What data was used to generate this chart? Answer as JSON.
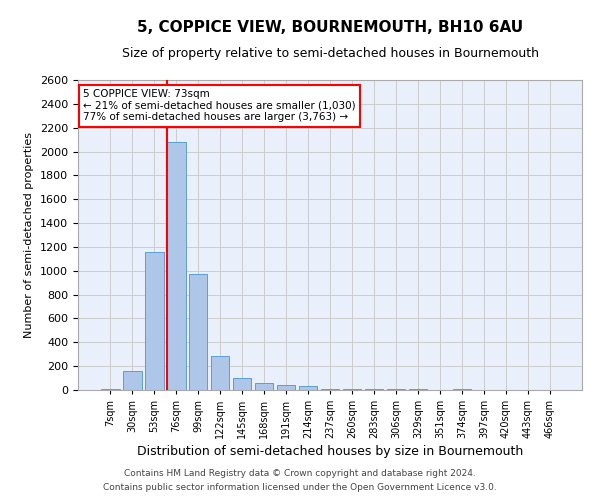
{
  "title": "5, COPPICE VIEW, BOURNEMOUTH, BH10 6AU",
  "subtitle": "Size of property relative to semi-detached houses in Bournemouth",
  "xlabel": "Distribution of semi-detached houses by size in Bournemouth",
  "ylabel": "Number of semi-detached properties",
  "footnote1": "Contains HM Land Registry data © Crown copyright and database right 2024.",
  "footnote2": "Contains public sector information licensed under the Open Government Licence v3.0.",
  "categories": [
    "7sqm",
    "30sqm",
    "53sqm",
    "76sqm",
    "99sqm",
    "122sqm",
    "145sqm",
    "168sqm",
    "191sqm",
    "214sqm",
    "237sqm",
    "260sqm",
    "283sqm",
    "306sqm",
    "329sqm",
    "351sqm",
    "374sqm",
    "397sqm",
    "420sqm",
    "443sqm",
    "466sqm"
  ],
  "values": [
    10,
    160,
    1160,
    2080,
    970,
    285,
    100,
    55,
    45,
    30,
    10,
    5,
    5,
    5,
    5,
    0,
    5,
    0,
    0,
    0,
    0
  ],
  "bar_color": "#aec6e8",
  "bar_edgecolor": "#5a9fd4",
  "grid_color": "#cccccc",
  "background_color": "#eaf0fb",
  "annotation_line1": "5 COPPICE VIEW: 73sqm",
  "annotation_line2": "← 21% of semi-detached houses are smaller (1,030)",
  "annotation_line3": "77% of semi-detached houses are larger (3,763) →",
  "annotation_box_edgecolor": "red",
  "property_line_color": "red",
  "property_line_index": 3,
  "bar_width": 0.85,
  "ylim": [
    0,
    2600
  ],
  "yticks": [
    0,
    200,
    400,
    600,
    800,
    1000,
    1200,
    1400,
    1600,
    1800,
    2000,
    2200,
    2400,
    2600
  ],
  "title_fontsize": 11,
  "subtitle_fontsize": 9,
  "ylabel_fontsize": 8,
  "xlabel_fontsize": 9,
  "xtick_fontsize": 7,
  "ytick_fontsize": 8,
  "footnote_fontsize": 6.5
}
